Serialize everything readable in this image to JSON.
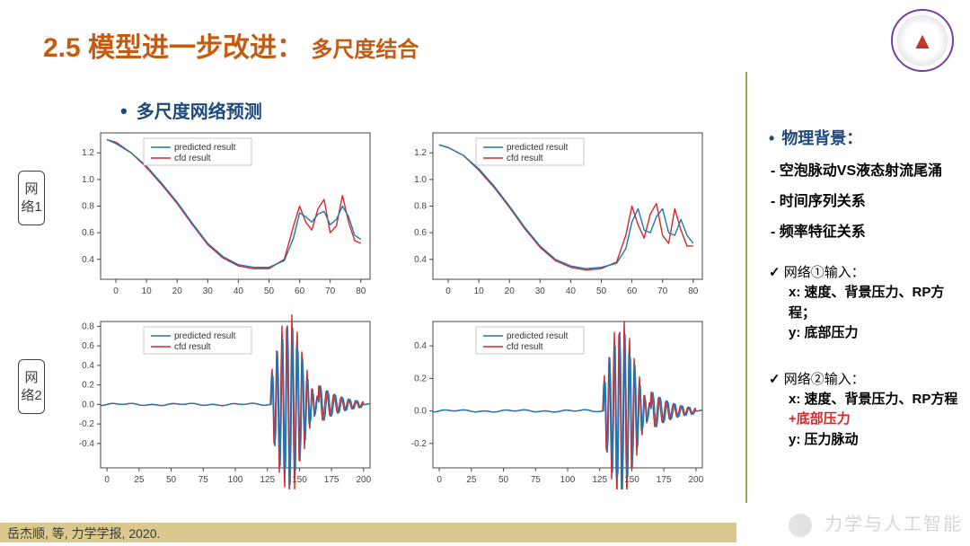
{
  "title_main": "2.5 模型进一步改进：",
  "title_sub": "多尺度结合",
  "subheading": "多尺度网络预测",
  "net_labels": [
    "网络1",
    "网络2"
  ],
  "legend": {
    "pred": "predicted result",
    "cfd": "cfd result"
  },
  "colors": {
    "line_pred": "#1f77b4",
    "line_cfd": "#d62728",
    "axis": "#444444",
    "tick": "#888888",
    "chart_border": "#cccccc"
  },
  "right": {
    "section_title": "物理背景：",
    "dash": [
      "空泡脉动VS液态射流尾涌",
      "时间序列关系",
      "频率特征关系"
    ],
    "net1_head": "网络①输入：",
    "net1_x": "x: 速度、背景压力、RP方程；",
    "net1_y": "y: 底部压力",
    "net2_head": "网络②输入：",
    "net2_x": "x: 速度、背景压力、RP方程",
    "net2_x2": "+底部压力",
    "net2_y": "y: 压力脉动"
  },
  "footer_text": "岳杰顺, 等,    力学学报,  2020.",
  "watermark": "力学与人工智能",
  "charts": {
    "topLeft": {
      "xdomain": [
        -5,
        83
      ],
      "ydomain": [
        0.25,
        1.35
      ],
      "xticks": [
        0,
        10,
        20,
        30,
        40,
        50,
        60,
        70,
        80
      ],
      "yticks": [
        0.4,
        0.6,
        0.8,
        1.0,
        1.2
      ],
      "pred": [
        [
          -3,
          1.3
        ],
        [
          0,
          1.27
        ],
        [
          5,
          1.2
        ],
        [
          10,
          1.1
        ],
        [
          15,
          0.97
        ],
        [
          20,
          0.83
        ],
        [
          25,
          0.67
        ],
        [
          30,
          0.52
        ],
        [
          35,
          0.42
        ],
        [
          40,
          0.36
        ],
        [
          45,
          0.34
        ],
        [
          50,
          0.34
        ],
        [
          55,
          0.39
        ],
        [
          58,
          0.56
        ],
        [
          60,
          0.75
        ],
        [
          62,
          0.72
        ],
        [
          64,
          0.68
        ],
        [
          66,
          0.74
        ],
        [
          68,
          0.76
        ],
        [
          70,
          0.66
        ],
        [
          72,
          0.7
        ],
        [
          74,
          0.8
        ],
        [
          76,
          0.72
        ],
        [
          78,
          0.58
        ],
        [
          80,
          0.55
        ]
      ],
      "cfd": [
        [
          -3,
          1.3
        ],
        [
          0,
          1.28
        ],
        [
          5,
          1.2
        ],
        [
          10,
          1.09
        ],
        [
          15,
          0.96
        ],
        [
          20,
          0.82
        ],
        [
          25,
          0.66
        ],
        [
          30,
          0.51
        ],
        [
          35,
          0.41
        ],
        [
          40,
          0.35
        ],
        [
          45,
          0.33
        ],
        [
          50,
          0.33
        ],
        [
          55,
          0.4
        ],
        [
          58,
          0.65
        ],
        [
          60,
          0.8
        ],
        [
          62,
          0.68
        ],
        [
          64,
          0.62
        ],
        [
          66,
          0.78
        ],
        [
          68,
          0.85
        ],
        [
          70,
          0.6
        ],
        [
          72,
          0.65
        ],
        [
          74,
          0.88
        ],
        [
          76,
          0.68
        ],
        [
          78,
          0.54
        ],
        [
          80,
          0.52
        ]
      ]
    },
    "topRight": {
      "xdomain": [
        -5,
        83
      ],
      "ydomain": [
        0.25,
        1.35
      ],
      "xticks": [
        0,
        10,
        20,
        30,
        40,
        50,
        60,
        70,
        80
      ],
      "yticks": [
        0.4,
        0.6,
        0.8,
        1.0,
        1.2
      ],
      "pred": [
        [
          -3,
          1.26
        ],
        [
          0,
          1.24
        ],
        [
          5,
          1.18
        ],
        [
          10,
          1.08
        ],
        [
          15,
          0.95
        ],
        [
          20,
          0.8
        ],
        [
          25,
          0.64
        ],
        [
          30,
          0.5
        ],
        [
          35,
          0.4
        ],
        [
          40,
          0.35
        ],
        [
          45,
          0.33
        ],
        [
          50,
          0.34
        ],
        [
          55,
          0.37
        ],
        [
          58,
          0.48
        ],
        [
          60,
          0.68
        ],
        [
          62,
          0.78
        ],
        [
          64,
          0.62
        ],
        [
          66,
          0.6
        ],
        [
          68,
          0.72
        ],
        [
          70,
          0.78
        ],
        [
          72,
          0.6
        ],
        [
          74,
          0.58
        ],
        [
          76,
          0.7
        ],
        [
          78,
          0.58
        ],
        [
          80,
          0.52
        ]
      ],
      "cfd": [
        [
          -3,
          1.26
        ],
        [
          0,
          1.24
        ],
        [
          5,
          1.18
        ],
        [
          10,
          1.07
        ],
        [
          15,
          0.94
        ],
        [
          20,
          0.79
        ],
        [
          25,
          0.63
        ],
        [
          30,
          0.49
        ],
        [
          35,
          0.39
        ],
        [
          40,
          0.34
        ],
        [
          45,
          0.32
        ],
        [
          50,
          0.33
        ],
        [
          55,
          0.38
        ],
        [
          58,
          0.58
        ],
        [
          60,
          0.8
        ],
        [
          62,
          0.66
        ],
        [
          64,
          0.56
        ],
        [
          66,
          0.74
        ],
        [
          68,
          0.82
        ],
        [
          70,
          0.58
        ],
        [
          72,
          0.52
        ],
        [
          74,
          0.78
        ],
        [
          76,
          0.62
        ],
        [
          78,
          0.5
        ],
        [
          80,
          0.5
        ]
      ]
    },
    "botLeft": {
      "xdomain": [
        -5,
        205
      ],
      "ydomain": [
        -0.65,
        0.85
      ],
      "xticks": [
        0,
        25,
        50,
        75,
        100,
        125,
        150,
        175,
        200
      ],
      "yticks": [
        -0.4,
        -0.2,
        0.0,
        0.2,
        0.4,
        0.6,
        0.8
      ],
      "pred": "osc",
      "cfd": "osc2"
    },
    "botRight": {
      "xdomain": [
        -5,
        205
      ],
      "ydomain": [
        -0.35,
        0.55
      ],
      "xticks": [
        0,
        25,
        50,
        75,
        100,
        125,
        150,
        175,
        200
      ],
      "yticks": [
        -0.2,
        0.0,
        0.2,
        0.4
      ],
      "pred": "osc",
      "cfd": "osc2"
    }
  }
}
